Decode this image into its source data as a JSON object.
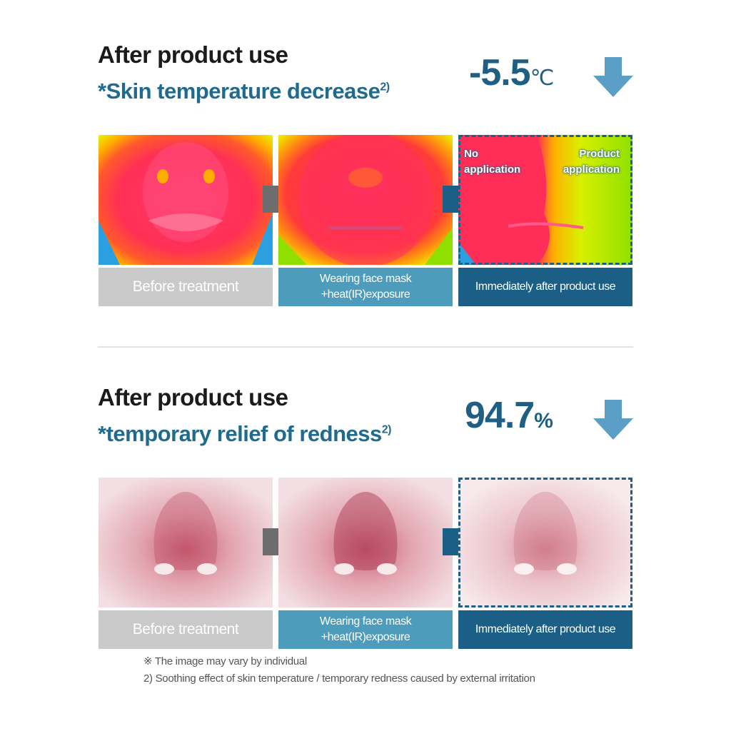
{
  "section1": {
    "title": "After product use",
    "subtitle": "*Skin temperature decrease",
    "footnote_ref": "2)",
    "stat_value": "-5.5",
    "stat_unit": "℃",
    "stat_direction": "down-arrow",
    "labels": [
      "Before treatment",
      "Wearing face mask",
      "+heat(IR)exposure",
      "Immediately after product use"
    ],
    "overlay_left": [
      "No",
      "application"
    ],
    "overlay_right": [
      "Product",
      "application"
    ]
  },
  "section2": {
    "title": "After product use",
    "subtitle": "*temporary relief of redness",
    "footnote_ref": "2)",
    "stat_value": "94.7",
    "stat_unit": "%",
    "stat_direction": "down-arrow",
    "labels": [
      "Before treatment",
      "Wearing face mask",
      "+heat(IR)exposure",
      "Immediately after product use"
    ]
  },
  "notes": {
    "line1": "※ The image may vary by individual",
    "line2": "2) Soothing effect of skin temperature / temporary redness caused by external irritation"
  },
  "colors": {
    "accent_navy": "#1b5f86",
    "accent_teal": "#4d9cbb",
    "label_gray": "#c9c9c9",
    "arrow_light": "#5b9ec6"
  }
}
